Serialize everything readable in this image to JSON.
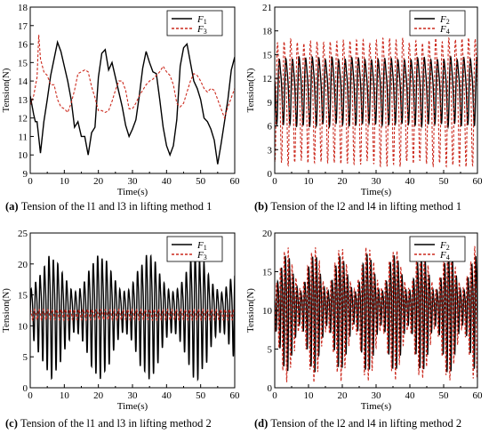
{
  "chart_data": [
    {
      "type": "line",
      "caption_label": "(a)",
      "caption_text": "Tension of the l1 and l3 in lifting method 1",
      "xlabel": "Time(s)",
      "ylabel": "Tension(N)",
      "xlim": [
        0,
        60
      ],
      "ylim": [
        9,
        18
      ],
      "xticks": [
        0,
        10,
        20,
        30,
        40,
        50,
        60
      ],
      "yticks": [
        9,
        10,
        11,
        12,
        13,
        14,
        15,
        16,
        17,
        18
      ],
      "legend_position": "top-right",
      "series": [
        {
          "name": "F1",
          "color": "#000000",
          "style": "solid",
          "x": [
            0,
            1,
            1.5,
            2,
            3,
            4,
            5,
            6,
            7,
            8,
            9,
            10,
            11,
            12,
            13,
            14,
            15,
            16,
            17,
            18,
            19,
            20,
            21,
            22,
            23,
            24,
            25,
            26,
            27,
            28,
            29,
            30,
            31,
            32,
            33,
            34,
            35,
            36,
            37,
            38,
            39,
            40,
            41,
            42,
            43,
            44,
            45,
            46,
            47,
            48,
            49,
            50,
            51,
            52,
            53,
            54,
            55,
            56,
            57,
            58,
            59,
            60
          ],
          "y": [
            13.2,
            12.2,
            11.8,
            11.8,
            10.1,
            11.8,
            13.0,
            14.3,
            15.2,
            16.1,
            15.6,
            14.8,
            14.0,
            13.0,
            11.5,
            11.8,
            11.0,
            11.0,
            10.0,
            11.2,
            11.5,
            14.2,
            15.5,
            15.7,
            14.6,
            15.0,
            14.2,
            13.4,
            12.6,
            11.6,
            11.0,
            11.4,
            11.9,
            13.2,
            14.7,
            15.6,
            15.0,
            14.5,
            14.4,
            13.0,
            11.5,
            10.5,
            10.0,
            10.5,
            11.9,
            14.8,
            15.8,
            16.0,
            15.0,
            14.0,
            13.6,
            13.0,
            12.0,
            11.8,
            11.4,
            10.8,
            9.5,
            10.6,
            11.8,
            13.0,
            14.6,
            15.3
          ]
        },
        {
          "name": "F3",
          "color": "#cc2a1e",
          "style": "dashed",
          "x": [
            0,
            1,
            2,
            2.5,
            3,
            4,
            5,
            6,
            7,
            8,
            9,
            10,
            11,
            12,
            13,
            14,
            15,
            16,
            17,
            18,
            19,
            20,
            21,
            22,
            23,
            24,
            25,
            26,
            27,
            28,
            29,
            30,
            31,
            32,
            33,
            34,
            35,
            36,
            37,
            38,
            39,
            40,
            41,
            42,
            43,
            44,
            45,
            46,
            47,
            48,
            49,
            50,
            51,
            52,
            53,
            54,
            55,
            56,
            57,
            58,
            59,
            60
          ],
          "y": [
            12.7,
            13.2,
            14.2,
            16.5,
            15.2,
            14.5,
            14.3,
            13.8,
            13.8,
            13.0,
            12.6,
            12.5,
            12.3,
            12.8,
            13.5,
            14.4,
            14.5,
            14.6,
            14.5,
            13.7,
            13.1,
            12.4,
            12.4,
            12.3,
            12.4,
            12.9,
            13.5,
            14.0,
            14.0,
            13.5,
            12.5,
            12.5,
            12.8,
            13.2,
            13.5,
            13.8,
            14.0,
            14.1,
            14.3,
            14.5,
            14.8,
            14.5,
            14.3,
            13.8,
            12.8,
            12.6,
            12.8,
            13.4,
            14.0,
            14.4,
            14.3,
            14.0,
            13.6,
            13.4,
            13.6,
            13.5,
            13.0,
            12.5,
            12.0,
            12.6,
            13.1,
            13.6
          ]
        }
      ]
    },
    {
      "type": "line",
      "caption_label": "(b)",
      "caption_text": "Tension of the l2 and l4 in lifting method 1",
      "xlabel": "Time(s)",
      "ylabel": "Tension(N)",
      "xlim": [
        0,
        60
      ],
      "ylim": [
        0,
        21
      ],
      "xticks": [
        0,
        10,
        20,
        30,
        40,
        50,
        60
      ],
      "yticks": [
        0,
        3,
        6,
        9,
        12,
        15,
        18,
        21
      ],
      "legend_position": "top-right",
      "series": [
        {
          "name": "F2",
          "color": "#000000",
          "style": "solid",
          "period": 1.95,
          "mean": 10.8,
          "amplitude": 3.9
        },
        {
          "name": "F4",
          "color": "#cc2a1e",
          "style": "dashed",
          "period": 1.95,
          "mean": 9.9,
          "amplitude": 7.2
        }
      ]
    },
    {
      "type": "line",
      "caption_label": "(c)",
      "caption_text": "Tension of the l1 and l3 in lifting method 2",
      "xlabel": "Time(s)",
      "ylabel": "Tension(N)",
      "xlim": [
        0,
        60
      ],
      "ylim": [
        0,
        25
      ],
      "xticks": [
        0,
        10,
        20,
        30,
        40,
        50,
        60
      ],
      "yticks": [
        0,
        5,
        10,
        15,
        20,
        25
      ],
      "legend_position": "top-right",
      "series": [
        {
          "name": "F1",
          "color": "#000000",
          "style": "solid",
          "period": 1.3,
          "mean": 12.6,
          "amplitude_min": 3.0,
          "amplitude_max": 9.0,
          "envelope_period": 14.2
        },
        {
          "name": "F3",
          "color": "#cc2a1e",
          "style": "dashed",
          "period": 1.3,
          "mean": 11.9,
          "amplitude": 0.8
        }
      ]
    },
    {
      "type": "line",
      "caption_label": "(d)",
      "caption_text": "Tension of the l2 and l4 in lifting method 2",
      "xlabel": "Time(s)",
      "ylabel": "Tension(N)",
      "xlim": [
        0,
        60
      ],
      "ylim": [
        0,
        20
      ],
      "xticks": [
        0,
        10,
        20,
        30,
        40,
        50,
        60
      ],
      "yticks": [
        0,
        5,
        10,
        15,
        20
      ],
      "legend_position": "top-right",
      "series": [
        {
          "name": "F2",
          "color": "#000000",
          "style": "solid",
          "period": 1.15,
          "mean": 10.5,
          "amplitude_min": 2.0,
          "amplitude_max": 7.0,
          "envelope_period": 8.0
        },
        {
          "name": "F4",
          "color": "#cc2a1e",
          "style": "dashed",
          "period": 1.15,
          "mean": 10.5,
          "amplitude_min": 2.5,
          "amplitude_max": 8.0,
          "envelope_period": 8.0
        }
      ]
    }
  ]
}
